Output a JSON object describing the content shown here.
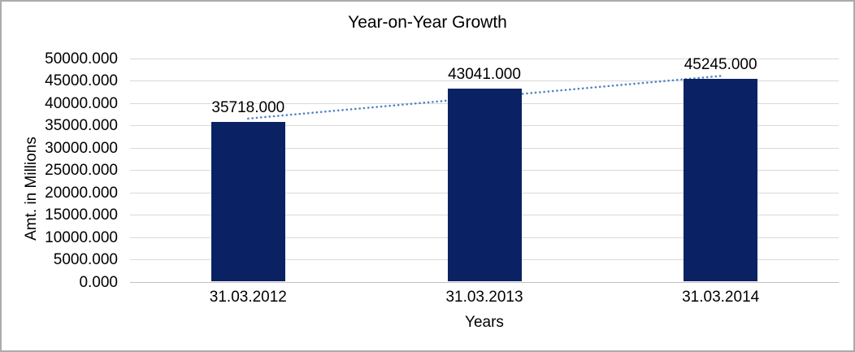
{
  "chart_data": {
    "type": "bar",
    "title": "Year-on-Year Growth",
    "xlabel": "Years",
    "ylabel": "Amt. in Millions",
    "categories": [
      "31.03.2012",
      "31.03.2013",
      "31.03.2014"
    ],
    "values": [
      35718,
      43041,
      45245
    ],
    "data_labels": [
      "35718.000",
      "43041.000",
      "45245.000"
    ],
    "y_ticks_top_down": [
      "50000.000",
      "45000.000",
      "40000.000",
      "35000.000",
      "30000.000",
      "25000.000",
      "20000.000",
      "15000.000",
      "10000.000",
      "5000.000",
      "0.000"
    ],
    "ylim": [
      0,
      50000
    ],
    "y_step": 5000,
    "grid": true,
    "legend_position": "none",
    "bar_color": "#0a2264",
    "trendline": {
      "type": "linear",
      "style": "dotted",
      "color": "#4f82c4"
    }
  },
  "frame": {
    "border_color": "#ababab",
    "gridline_color": "#d9d9d9",
    "axis_line_color": "#bfbfbf"
  }
}
